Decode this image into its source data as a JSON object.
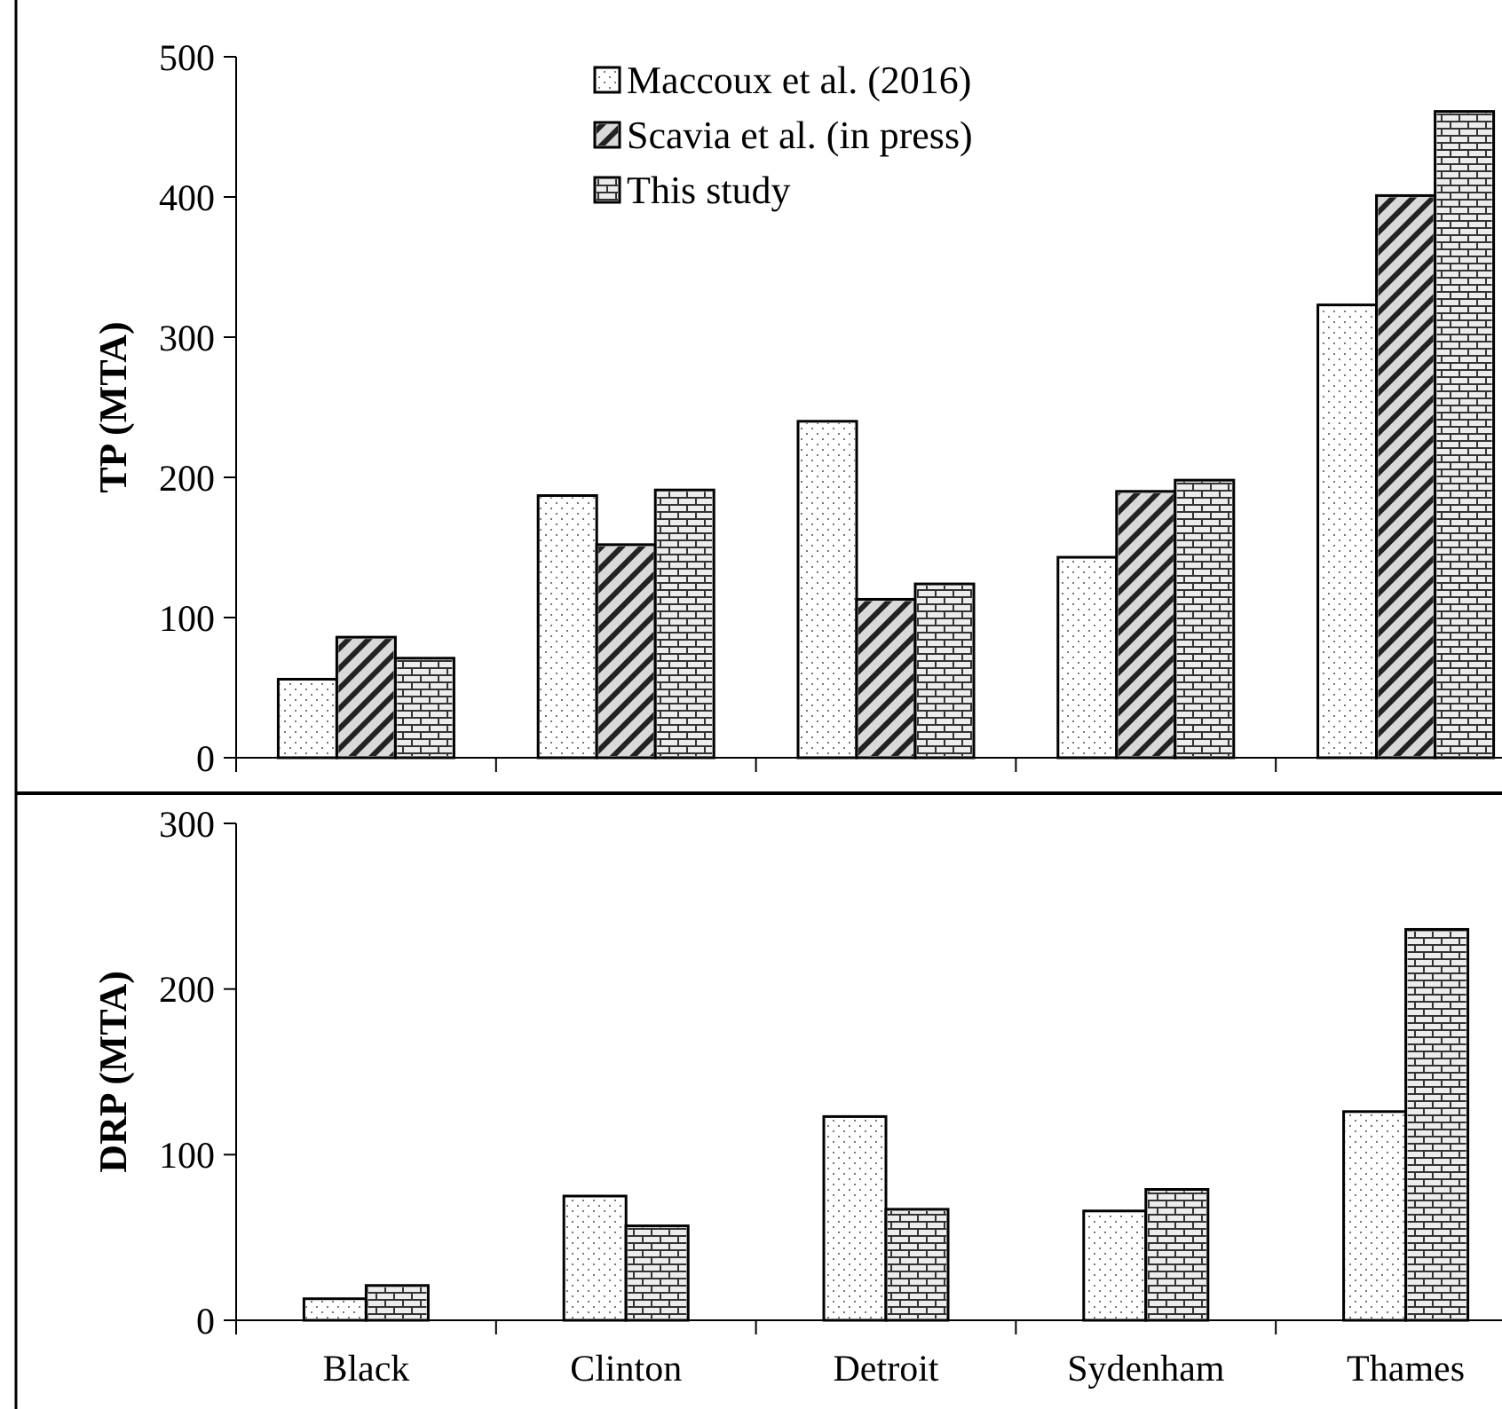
{
  "chart_data": [
    {
      "type": "bar",
      "ylabel": "TP (MTA)",
      "categories": [
        null,
        null,
        null,
        null,
        null
      ],
      "ylim": [
        0,
        500
      ],
      "yticks": [
        0,
        100,
        200,
        300,
        400,
        500
      ],
      "tick_labels": "y",
      "legend": "top",
      "series": [
        {
          "name": "Maccoux et al. (2016)",
          "color": "#ffffff",
          "values": [
            56,
            187,
            240,
            143,
            323
          ]
        },
        {
          "name": "Scavia et al. (in press)",
          "color": "#d9d9d9",
          "values": [
            86,
            152,
            113,
            190,
            401
          ]
        },
        {
          "name": "This study",
          "color": "#ececec",
          "values": [
            71,
            191,
            124,
            198,
            461
          ]
        }
      ]
    },
    {
      "type": "bar",
      "ylabel": "DRP (MTA)",
      "categories": [
        "Black",
        "Clinton",
        "Detroit",
        "Sydenham",
        "Thames"
      ],
      "ylim": [
        0,
        300
      ],
      "yticks": [
        0,
        100,
        200,
        300
      ],
      "series": [
        {
          "color": "#ffffff",
          "values": [
            13,
            75,
            123,
            66,
            126
          ]
        },
        {
          "color": "#ececec",
          "values": [
            21,
            57,
            67,
            79,
            236
          ]
        }
      ]
    }
  ]
}
